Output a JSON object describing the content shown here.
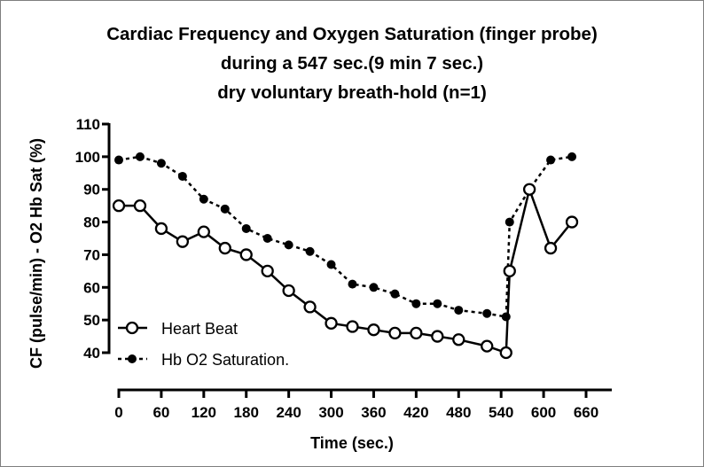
{
  "chart_data": {
    "type": "line",
    "title": [
      "Cardiac Frequency and Oxygen Saturation (finger probe)",
      "during a 547 sec.(9 min 7 sec.)",
      "dry voluntary breath-hold (n=1)"
    ],
    "xlabel": "Time (sec.)",
    "ylabel": "CF (pulse/min) - O2 Hb Sat (%)",
    "xlim": [
      0,
      660
    ],
    "ylim": [
      40,
      110
    ],
    "xticks": [
      "0",
      "60",
      "120",
      "180",
      "240",
      "300",
      "360",
      "420",
      "480",
      "540",
      "600",
      "660"
    ],
    "yticks": [
      "40",
      "50",
      "60",
      "70",
      "80",
      "90",
      "100",
      "110"
    ],
    "grid": false,
    "legend_position": "bottom-left",
    "series": [
      {
        "name": "Heart Beat",
        "marker": "open-circle",
        "line": "solid",
        "x": [
          0,
          30,
          60,
          90,
          120,
          150,
          180,
          210,
          240,
          270,
          300,
          330,
          360,
          390,
          420,
          450,
          480,
          520,
          547,
          552,
          580,
          610,
          640
        ],
        "y": [
          85,
          85,
          78,
          74,
          77,
          72,
          70,
          65,
          59,
          54,
          49,
          48,
          47,
          46,
          46,
          45,
          44,
          42,
          40,
          65,
          90,
          72,
          80
        ]
      },
      {
        "name": "Hb O2 Saturation.",
        "marker": "filled-circle",
        "line": "dashed",
        "x": [
          0,
          30,
          60,
          90,
          120,
          150,
          180,
          210,
          240,
          270,
          300,
          330,
          360,
          390,
          420,
          450,
          480,
          520,
          547,
          552,
          580,
          610,
          640
        ],
        "y": [
          99,
          100,
          98,
          94,
          87,
          84,
          78,
          75,
          73,
          71,
          67,
          61,
          60,
          58,
          55,
          55,
          53,
          52,
          51,
          80,
          90,
          99,
          100
        ]
      }
    ]
  }
}
